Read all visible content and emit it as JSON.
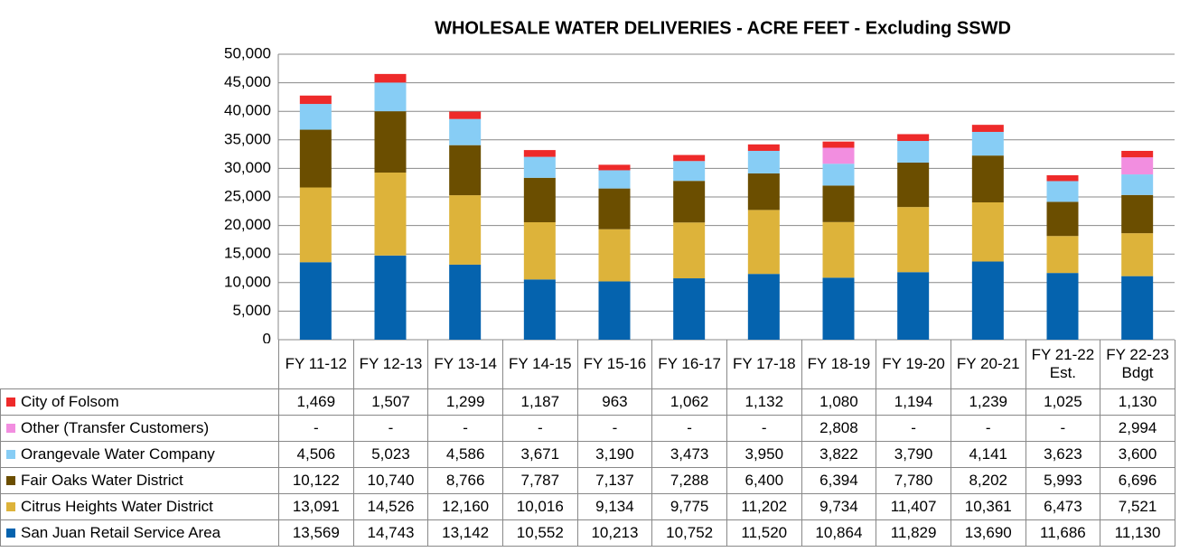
{
  "chart_data": {
    "type": "stacked_bar",
    "title": "WHOLESALE WATER DELIVERIES - ACRE FEET - Excluding SSWD",
    "categories": [
      "FY 11-12",
      "FY 12-13",
      "FY 13-14",
      "FY 14-15",
      "FY 15-16",
      "FY 16-17",
      "FY 17-18",
      "FY 18-19",
      "FY 19-20",
      "FY 20-21",
      "FY 21-22 Est.",
      "FY 22-23 Bdgt"
    ],
    "ylim": [
      0,
      50000
    ],
    "yticks": [
      0,
      {
        "value": 5000,
        "label": "5,000"
      },
      {
        "value": 10000,
        "label": "10,000"
      },
      {
        "value": 15000,
        "label": "15,000"
      },
      {
        "value": 20000,
        "label": "20,000"
      },
      {
        "value": 25000,
        "label": "25,000"
      },
      {
        "value": 30000,
        "label": "30,000"
      },
      {
        "value": 35000,
        "label": "35,000"
      },
      {
        "value": 40000,
        "label": "40,000"
      },
      {
        "value": 45000,
        "label": "45,000"
      },
      {
        "value": 50000,
        "label": "50,000"
      }
    ],
    "grid": true,
    "series": [
      {
        "name": "City of Folsom",
        "color": "#ee2a2a",
        "values": [
          1469,
          1507,
          1299,
          1187,
          963,
          1062,
          1132,
          1080,
          1194,
          1239,
          1025,
          1130
        ],
        "value_labels": [
          "1,469",
          "1,507",
          "1,299",
          "1,187",
          "963",
          "1,062",
          "1,132",
          "1,080",
          "1,194",
          "1,239",
          "1,025",
          "1,130"
        ]
      },
      {
        "name": "Other (Transfer Customers)",
        "color": "#f28ee0",
        "values": [
          null,
          null,
          null,
          null,
          null,
          null,
          null,
          2808,
          null,
          null,
          null,
          2994
        ],
        "value_labels": [
          "-",
          "-",
          "-",
          "-",
          "-",
          "-",
          "-",
          "2,808",
          "-",
          "-",
          "-",
          "2,994"
        ]
      },
      {
        "name": "Orangevale Water Company",
        "color": "#87cdf5",
        "values": [
          4506,
          5023,
          4586,
          3671,
          3190,
          3473,
          3950,
          3822,
          3790,
          4141,
          3623,
          3600
        ],
        "value_labels": [
          "4,506",
          "5,023",
          "4,586",
          "3,671",
          "3,190",
          "3,473",
          "3,950",
          "3,822",
          "3,790",
          "4,141",
          "3,623",
          "3,600"
        ]
      },
      {
        "name": "Fair Oaks Water District",
        "color": "#6b4e00",
        "values": [
          10122,
          10740,
          8766,
          7787,
          7137,
          7288,
          6400,
          6394,
          7780,
          8202,
          5993,
          6696
        ],
        "value_labels": [
          "10,122",
          "10,740",
          "8,766",
          "7,787",
          "7,137",
          "7,288",
          "6,400",
          "6,394",
          "7,780",
          "8,202",
          "5,993",
          "6,696"
        ]
      },
      {
        "name": "Citrus Heights Water District",
        "color": "#ddb33a",
        "values": [
          13091,
          14526,
          12160,
          10016,
          9134,
          9775,
          11202,
          9734,
          11407,
          10361,
          6473,
          7521
        ],
        "value_labels": [
          "13,091",
          "14,526",
          "12,160",
          "10,016",
          "9,134",
          "9,775",
          "11,202",
          "9,734",
          "11,407",
          "10,361",
          "6,473",
          "7,521"
        ]
      },
      {
        "name": "San Juan Retail Service Area",
        "color": "#0563ae",
        "values": [
          13569,
          14743,
          13142,
          10552,
          10213,
          10752,
          11520,
          10864,
          11829,
          13690,
          11686,
          11130
        ],
        "value_labels": [
          "13,569",
          "14,743",
          "13,142",
          "10,552",
          "10,213",
          "10,752",
          "11,520",
          "10,864",
          "11,829",
          "13,690",
          "11,686",
          "11,130"
        ]
      }
    ]
  }
}
